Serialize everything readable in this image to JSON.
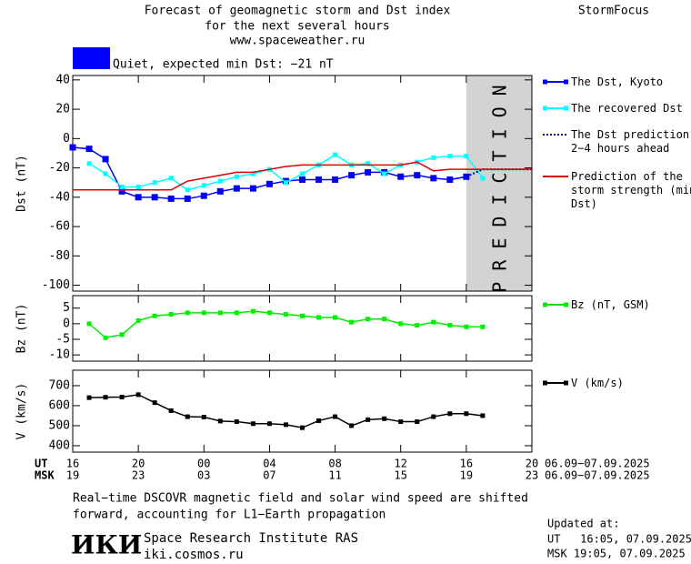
{
  "header": {
    "title_lines": [
      "Forecast of geomagnetic storm and Dst index",
      "for the next several hours",
      "www.spaceweather.ru"
    ],
    "brand": "StormFocus",
    "status": "Quiet, expected min Dst: −21 nT",
    "status_color": "#0000ff"
  },
  "chart_data": [
    {
      "type": "line",
      "ylabel": "Dst (nT)",
      "ylim": [
        -104,
        43
      ],
      "yticks": [
        40,
        20,
        0,
        -20,
        -40,
        -60,
        -80,
        -100
      ],
      "band": {
        "xlim": [
          40,
          44
        ],
        "label": "PREDICTION",
        "color": "#d3d3d3"
      },
      "series": [
        {
          "name": "The Dst, Kyoto",
          "color": "#0000ff",
          "marker": "big",
          "x": [
            16,
            17,
            18,
            19,
            20,
            21,
            22,
            23,
            24,
            25,
            26,
            27,
            28,
            29,
            30,
            31,
            32,
            33,
            34,
            35,
            36,
            37,
            38,
            39,
            40
          ],
          "values": [
            -6,
            -7,
            -14,
            -36,
            -40,
            -40,
            -41,
            -41,
            -39,
            -36,
            -34,
            -34,
            -31,
            -29,
            -28,
            -28,
            -28,
            -25,
            -23,
            -23,
            -26,
            -25,
            -27,
            -28,
            -26
          ]
        },
        {
          "name": "The recovered Dst",
          "color": "#00ffff",
          "marker": "small",
          "x": [
            17,
            18,
            19,
            20,
            21,
            22,
            23,
            24,
            25,
            26,
            27,
            28,
            29,
            30,
            31,
            32,
            33,
            34,
            35,
            36,
            37,
            38,
            39,
            40,
            41
          ],
          "values": [
            -17,
            -24,
            -33,
            -33,
            -30,
            -27,
            -35,
            -32,
            -29,
            -26,
            -24,
            -21,
            -30,
            -24,
            -18,
            -11,
            -18,
            -17,
            -24,
            -18,
            -16,
            -13,
            -12,
            -12,
            -27
          ]
        },
        {
          "name": "The Dst prediction 2−4 hours ahead",
          "color": "#0000aa",
          "dash": true,
          "x": [
            40,
            41,
            44
          ],
          "values": [
            -26,
            -21,
            -21
          ]
        },
        {
          "name": "Prediction of the storm strength (min Dst)",
          "color": "#dd0000",
          "x": [
            16,
            17,
            18,
            19,
            20,
            21,
            22,
            23,
            24,
            25,
            26,
            27,
            28,
            29,
            30,
            31,
            32,
            33,
            34,
            35,
            36,
            37,
            38,
            39,
            40,
            41,
            42,
            43,
            44
          ],
          "values": [
            -35,
            -35,
            -35,
            -35,
            -35,
            -35,
            -35,
            -29,
            -27,
            -25,
            -23,
            -23,
            -21,
            -19,
            -18,
            -18,
            -18,
            -18,
            -18,
            -18,
            -18,
            -16,
            -22,
            -21,
            -21,
            -21,
            -21,
            -21,
            -21
          ]
        }
      ]
    },
    {
      "type": "line",
      "ylabel": "Bz (nT)",
      "ylim": [
        -12,
        9
      ],
      "yticks": [
        5,
        0,
        -5,
        -10
      ],
      "series": [
        {
          "name": "Bz (nT, GSM)",
          "color": "#00ee00",
          "marker": "small",
          "x": [
            17,
            18,
            19,
            20,
            21,
            22,
            23,
            24,
            25,
            26,
            27,
            28,
            29,
            30,
            31,
            32,
            33,
            34,
            35,
            36,
            37,
            38,
            39,
            40,
            41
          ],
          "values": [
            0,
            -4.5,
            -3.5,
            1,
            2.5,
            3,
            3.5,
            3.5,
            3.5,
            3.5,
            4,
            3.5,
            3,
            2.5,
            2,
            2,
            0.5,
            1.5,
            1.5,
            0,
            -0.5,
            0.5,
            -0.5,
            -1,
            -1
          ]
        }
      ]
    },
    {
      "type": "line",
      "ylabel": "V (km/s)",
      "ylim": [
        368,
        777
      ],
      "yticks": [
        700,
        600,
        500,
        400
      ],
      "xlim": [
        16,
        44
      ],
      "xticks": [
        16,
        20,
        {
          "value": 24,
          "label": "00"
        },
        {
          "value": 28,
          "label": "04"
        },
        {
          "value": 32,
          "label": "08"
        },
        {
          "value": 36,
          "label": "12"
        },
        {
          "value": 40,
          "label": "16"
        },
        {
          "value": 44,
          "label": "20"
        }
      ],
      "x2ticks": [
        {
          "value": 16,
          "label": "19"
        },
        {
          "value": 20,
          "label": "23"
        },
        {
          "value": 24,
          "label": "03"
        },
        {
          "value": 28,
          "label": "07"
        },
        {
          "value": 32,
          "label": "11"
        },
        {
          "value": 36,
          "label": "15"
        },
        {
          "value": 40,
          "label": "19"
        },
        {
          "value": 44,
          "label": "23"
        }
      ],
      "x_rows": [
        "UT",
        "MSK"
      ],
      "x_dates": [
        "06.09−07.09.2025",
        "06.09−07.09.2025"
      ],
      "series": [
        {
          "name": "V (km/s)",
          "color": "#000000",
          "marker": "small",
          "x": [
            17,
            18,
            19,
            20,
            21,
            22,
            23,
            24,
            25,
            26,
            27,
            28,
            29,
            30,
            31,
            32,
            33,
            34,
            35,
            36,
            37,
            38,
            39,
            40,
            41
          ],
          "values": [
            640,
            642,
            643,
            655,
            615,
            575,
            545,
            543,
            523,
            520,
            510,
            510,
            505,
            490,
            525,
            545,
            500,
            530,
            535,
            520,
            520,
            545,
            560,
            560,
            550
          ]
        }
      ]
    }
  ],
  "footer": {
    "note_lines": [
      "Real−time DSCOVR magnetic field and solar wind speed are shifted",
      "forward, accounting for L1−Earth propagation"
    ],
    "logo": "ИКИ",
    "institute": "Space Research Institute RAS",
    "site": "iki.cosmos.ru",
    "updated_label": "Updated at:",
    "updated": [
      "UT   16:05, 07.09.2025",
      "MSK 19:05, 07.09.2025"
    ]
  }
}
